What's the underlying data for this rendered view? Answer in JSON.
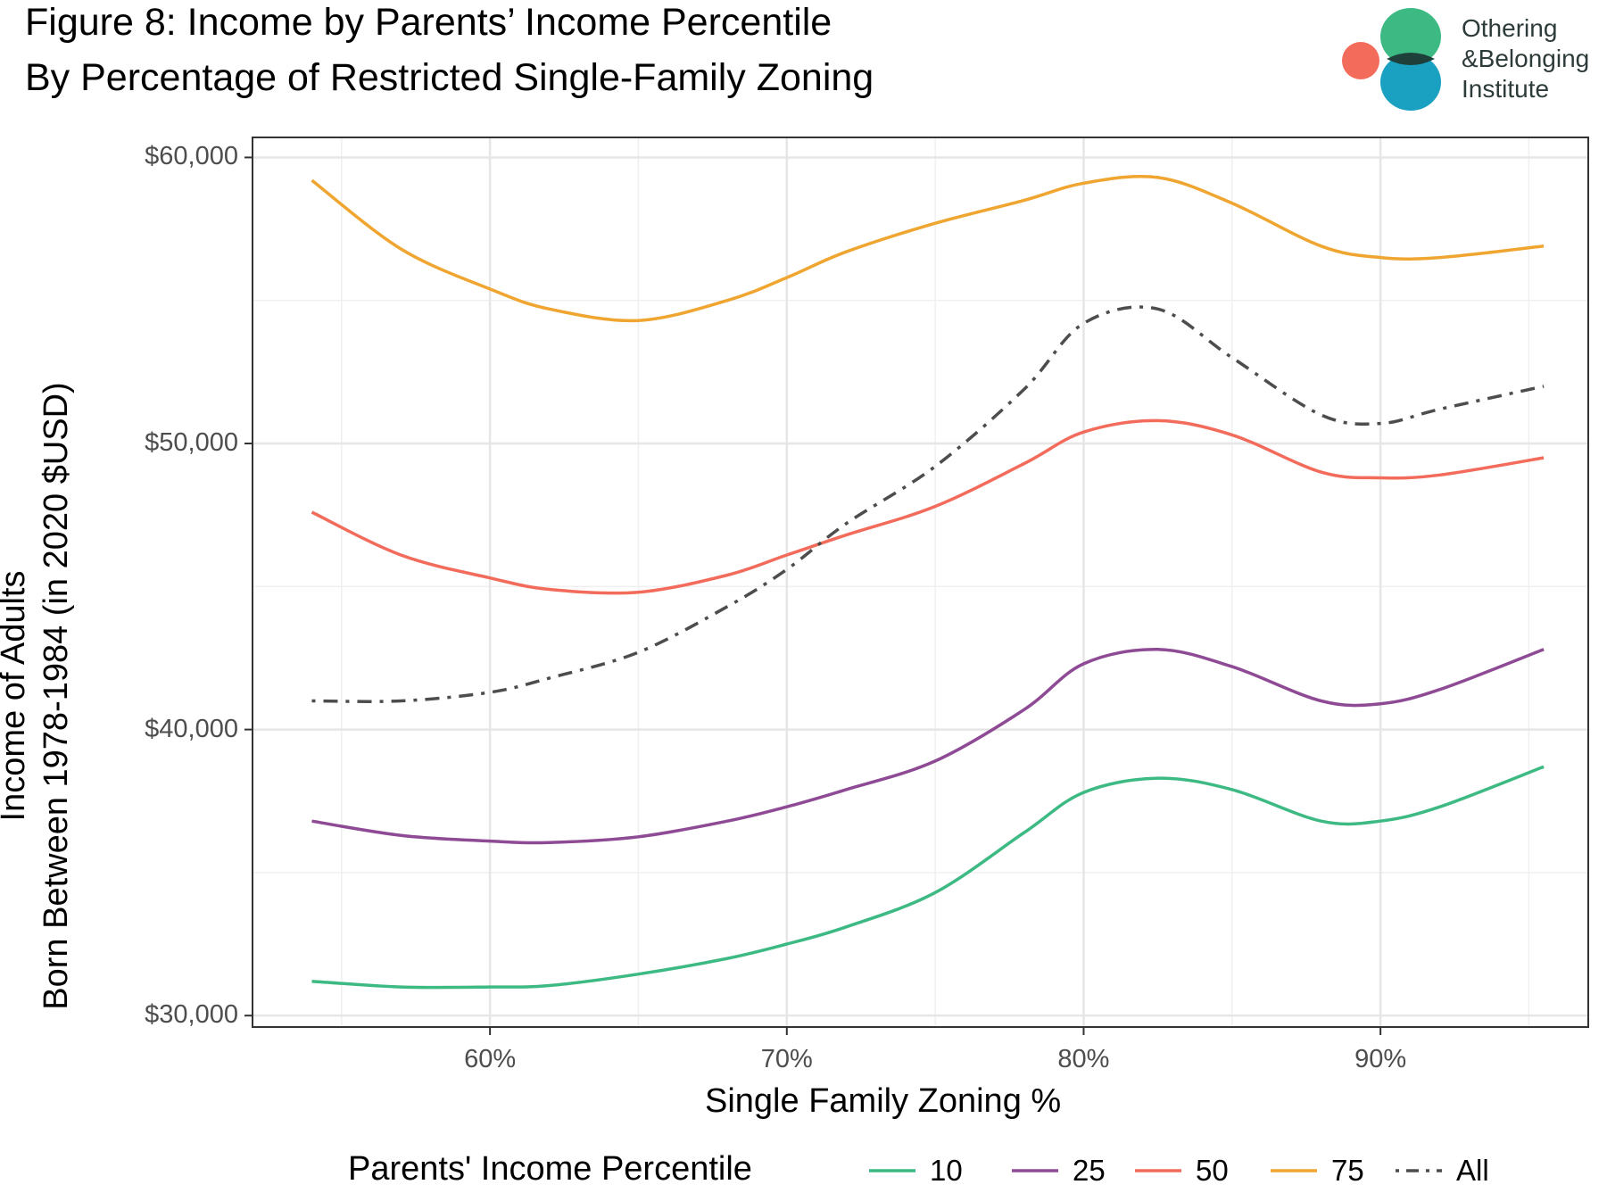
{
  "header": {
    "title_line1": "Figure 8: Income by Parents’ Income Percentile",
    "title_line2": "By Percentage of Restricted Single-Family Zoning"
  },
  "logo": {
    "line1": "Othering",
    "line2": "&Belonging",
    "line3": "Institute",
    "colors": {
      "coral": "#f26b5b",
      "green": "#3dba84",
      "blue": "#1aa0c1",
      "overlap": "#1f3f3a"
    }
  },
  "chart_data": {
    "type": "line",
    "title": "Figure 8: Income by Parents’ Income Percentile By Percentage of Restricted Single-Family Zoning",
    "xlabel": "Single Family Zoning %",
    "ylabel_line1": "Income of Adults",
    "ylabel_line2": "Born Between 1978-1984 (in 2020 $USD)",
    "xlim": [
      52,
      97
    ],
    "ylim": [
      29600,
      60700
    ],
    "x_ticks": [
      60,
      70,
      80,
      90
    ],
    "x_tick_labels": [
      "60%",
      "70%",
      "80%",
      "90%"
    ],
    "y_ticks": [
      30000,
      40000,
      50000,
      60000
    ],
    "y_tick_labels": [
      "$30,000",
      "$40,000",
      "$50,000",
      "$60,000"
    ],
    "grid": true,
    "legend_title": "Parents' Income Percentile",
    "legend_position": "bottom",
    "series": [
      {
        "name": "10",
        "color": "#3dba84",
        "dash": "solid",
        "x": [
          54,
          57,
          60,
          62,
          65,
          68,
          70,
          72,
          75,
          78,
          80,
          82.5,
          85,
          88,
          90,
          92,
          95.5
        ],
        "y": [
          31200,
          31000,
          31000,
          31050,
          31450,
          32000,
          32500,
          33100,
          34300,
          36400,
          37800,
          38300,
          37900,
          36800,
          36800,
          37300,
          38700
        ]
      },
      {
        "name": "25",
        "color": "#8e4a94",
        "dash": "solid",
        "x": [
          54,
          57,
          60,
          62,
          65,
          68,
          70,
          72,
          75,
          78,
          80,
          82.5,
          85,
          88,
          90,
          92,
          95.5
        ],
        "y": [
          36800,
          36300,
          36100,
          36050,
          36250,
          36800,
          37300,
          37900,
          38900,
          40700,
          42300,
          42800,
          42200,
          41000,
          40900,
          41400,
          42800
        ]
      },
      {
        "name": "50",
        "color": "#f26b5b",
        "dash": "solid",
        "x": [
          54,
          57,
          60,
          62,
          65,
          68,
          70,
          72,
          75,
          78,
          80,
          82.5,
          85,
          88,
          90,
          92,
          95.5
        ],
        "y": [
          47600,
          46100,
          45300,
          44900,
          44800,
          45400,
          46100,
          46800,
          47800,
          49300,
          50400,
          50800,
          50300,
          49000,
          48800,
          48900,
          49500
        ]
      },
      {
        "name": "75",
        "color": "#f0a530",
        "dash": "solid",
        "x": [
          54,
          57,
          60,
          62,
          65,
          68,
          70,
          72,
          75,
          78,
          80,
          82.5,
          85,
          88,
          90,
          92,
          95.5
        ],
        "y": [
          59200,
          56800,
          55400,
          54700,
          54300,
          55000,
          55800,
          56700,
          57700,
          58500,
          59100,
          59300,
          58400,
          56900,
          56500,
          56500,
          56900
        ]
      },
      {
        "name": "All",
        "color": "#4d4d4d",
        "dash": "dotdash",
        "x": [
          54,
          57,
          60,
          62,
          65,
          68,
          70,
          72,
          75,
          78,
          80,
          82.5,
          85,
          88,
          90,
          92,
          95.5
        ],
        "y": [
          41000,
          41000,
          41300,
          41800,
          42700,
          44300,
          45600,
          47200,
          49200,
          51900,
          54200,
          54700,
          53000,
          51000,
          50700,
          51200,
          52000
        ]
      }
    ]
  }
}
